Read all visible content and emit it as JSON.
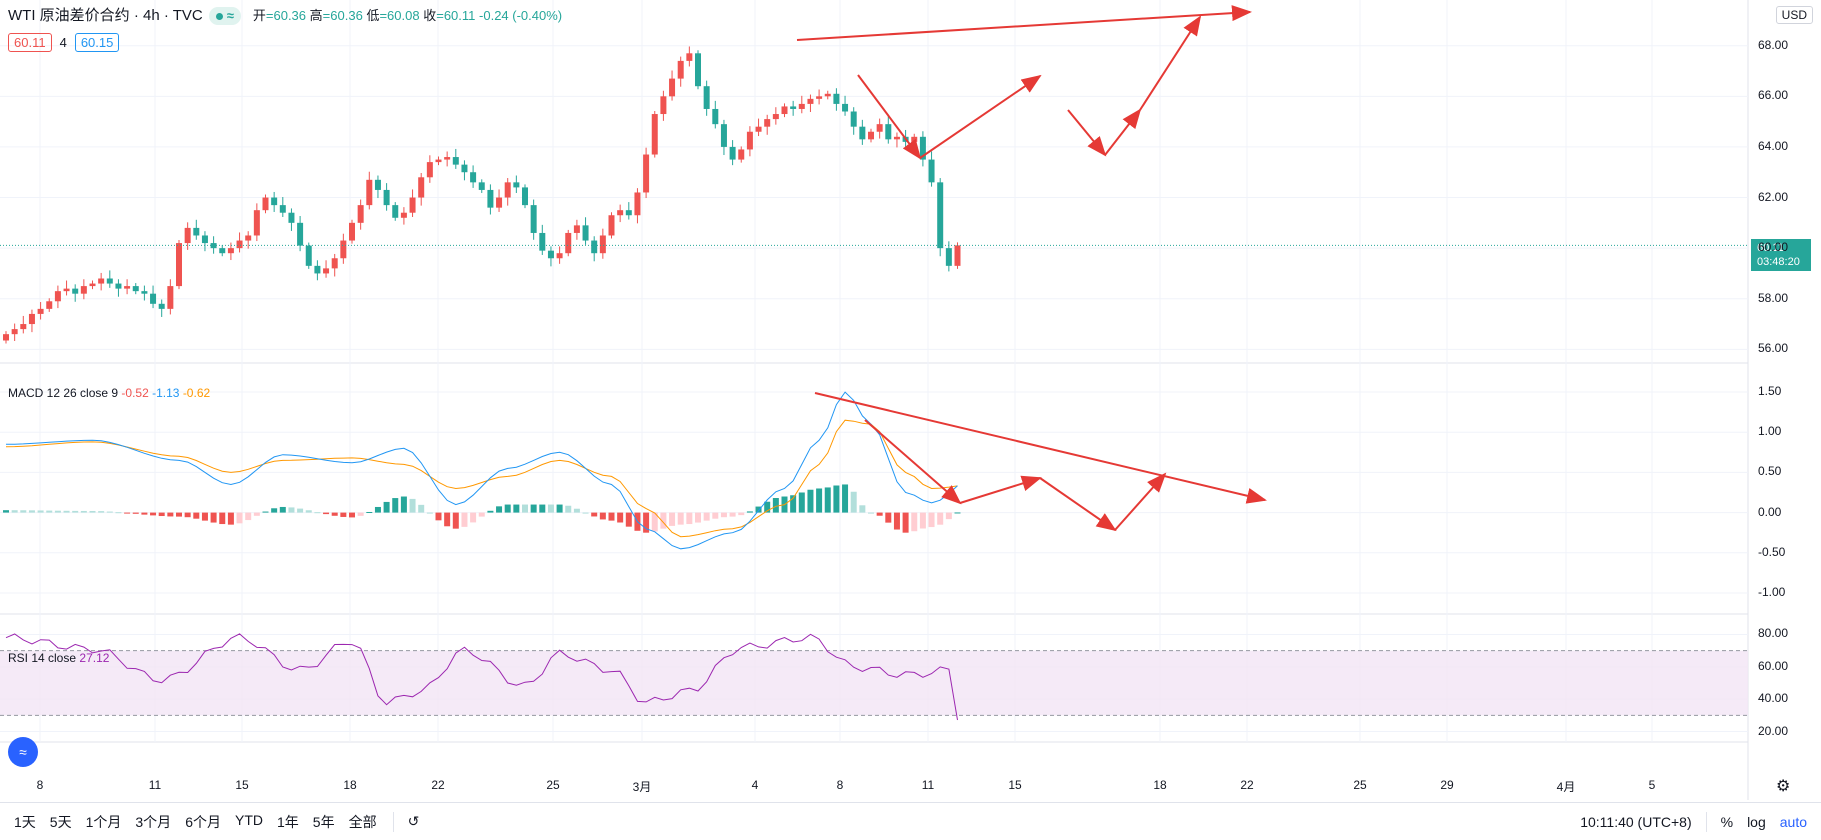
{
  "header": {
    "symbol": "WTI 原油差价合约 · 4h · TVC",
    "badge_symbol": "≈",
    "ohlc": {
      "open_label": "开",
      "open": "60.36",
      "high_label": "高",
      "high": "60.36",
      "low_label": "低",
      "low": "60.08",
      "close_label": "收",
      "close": "60.11",
      "change": "-0.24 (-0.40%)"
    },
    "sell_price": "60.11",
    "spread": "4",
    "buy_price": "60.15",
    "currency": "USD"
  },
  "last_price_tag": {
    "price": "60.11",
    "countdown": "03:48:20"
  },
  "macd_legend": {
    "label": "MACD 12 26 close 9",
    "hist": "-0.52",
    "macd": "-1.13",
    "signal": "-0.62"
  },
  "rsi_legend": {
    "label": "RSI 14 close",
    "value": "27.12"
  },
  "price_axis": [
    "68.00",
    "66.00",
    "64.00",
    "62.00",
    "60.00",
    "58.00",
    "56.00"
  ],
  "macd_axis": [
    "1.50",
    "1.00",
    "0.50",
    "0.00",
    "-0.50",
    "-1.00"
  ],
  "rsi_axis": [
    "80.00",
    "60.00",
    "40.00",
    "20.00"
  ],
  "time_axis": [
    "8",
    "11",
    "15",
    "18",
    "22",
    "25",
    "3月",
    "4",
    "8",
    "11",
    "15",
    "18",
    "22",
    "25",
    "29",
    "4月",
    "5"
  ],
  "toolbar": {
    "timeframes": [
      "1天",
      "5天",
      "1个月",
      "3个月",
      "6个月",
      "YTD",
      "1年",
      "5年",
      "全部"
    ],
    "goto_icon": "calendar-goto-icon",
    "clock": "10:11:40 (UTC+8)",
    "percent": "%",
    "log": "log",
    "auto": "auto"
  },
  "colors": {
    "up": "#ef5350",
    "down": "#26a69a",
    "macd_line": "#2196f3",
    "signal_line": "#ff9800",
    "rsi_line": "#9c27b0",
    "annotation": "#e53935"
  },
  "chart_data": [
    {
      "type": "candlestick",
      "title": "WTI 原油差价合约 · 4h · TVC",
      "ylim": [
        55.5,
        68.7
      ],
      "close_series": [
        56.6,
        56.8,
        57.0,
        57.4,
        57.6,
        57.9,
        58.3,
        58.4,
        58.2,
        58.5,
        58.6,
        58.8,
        58.6,
        58.4,
        58.5,
        58.3,
        58.2,
        57.8,
        57.6,
        58.5,
        60.2,
        60.8,
        60.5,
        60.2,
        60.0,
        59.8,
        60.0,
        60.3,
        60.5,
        61.5,
        62.0,
        61.7,
        61.4,
        61.0,
        60.1,
        59.3,
        59.0,
        59.2,
        59.6,
        60.3,
        61.0,
        61.7,
        62.7,
        62.3,
        61.7,
        61.2,
        61.4,
        62.0,
        62.8,
        63.4,
        63.5,
        63.6,
        63.3,
        63.0,
        62.6,
        62.3,
        61.6,
        62.0,
        62.6,
        62.4,
        61.7,
        60.6,
        59.9,
        59.6,
        59.8,
        60.6,
        60.9,
        60.3,
        59.8,
        60.5,
        61.3,
        61.5,
        61.3,
        62.2,
        63.7,
        65.3,
        66.0,
        66.7,
        67.4,
        67.7,
        66.4,
        65.5,
        64.9,
        64.0,
        63.5,
        63.9,
        64.6,
        64.8,
        65.1,
        65.3,
        65.6,
        65.5,
        65.7,
        65.9,
        66.0,
        66.1,
        65.7,
        65.4,
        64.8,
        64.3,
        64.6,
        64.9,
        64.3,
        64.4,
        64.2,
        64.4,
        63.5,
        62.6,
        60.0,
        59.3,
        60.11
      ]
    },
    {
      "type": "line",
      "title": "MACD 12 26 close 9",
      "ylim": [
        -1.15,
        1.65
      ],
      "series": [
        {
          "name": "MACD",
          "anchors": [
            [
              0,
              0.85
            ],
            [
              10,
              0.9
            ],
            [
              20,
              0.65
            ],
            [
              26,
              0.35
            ],
            [
              32,
              0.72
            ],
            [
              40,
              0.62
            ],
            [
              46,
              0.8
            ],
            [
              52,
              0.1
            ],
            [
              58,
              0.55
            ],
            [
              64,
              0.75
            ],
            [
              70,
              0.35
            ],
            [
              74,
              -0.2
            ],
            [
              78,
              -0.45
            ],
            [
              84,
              -0.25
            ],
            [
              90,
              0.3
            ],
            [
              94,
              0.9
            ],
            [
              97,
              1.5
            ],
            [
              100,
              1.1
            ],
            [
              104,
              0.25
            ],
            [
              107,
              0.12
            ],
            [
              112,
              0.45
            ],
            [
              118,
              0.3
            ],
            [
              124,
              -0.05
            ],
            [
              130,
              -0.2
            ],
            [
              133,
              -0.5
            ],
            [
              137,
              -1.1
            ]
          ]
        },
        {
          "name": "Signal",
          "anchors": [
            [
              0,
              0.82
            ],
            [
              10,
              0.88
            ],
            [
              20,
              0.7
            ],
            [
              26,
              0.5
            ],
            [
              32,
              0.65
            ],
            [
              40,
              0.68
            ],
            [
              46,
              0.6
            ],
            [
              52,
              0.3
            ],
            [
              58,
              0.45
            ],
            [
              64,
              0.65
            ],
            [
              70,
              0.45
            ],
            [
              74,
              0.05
            ],
            [
              78,
              -0.3
            ],
            [
              84,
              -0.2
            ],
            [
              90,
              0.1
            ],
            [
              94,
              0.6
            ],
            [
              97,
              1.15
            ],
            [
              100,
              1.1
            ],
            [
              104,
              0.5
            ],
            [
              107,
              0.3
            ],
            [
              112,
              0.35
            ],
            [
              118,
              0.4
            ],
            [
              124,
              0.05
            ],
            [
              130,
              -0.1
            ],
            [
              133,
              -0.3
            ],
            [
              137,
              -0.62
            ]
          ]
        },
        {
          "name": "Histogram",
          "derived": "MACD - Signal"
        }
      ]
    },
    {
      "type": "line",
      "title": "RSI 14 close",
      "ylim": [
        16,
        84
      ],
      "bands": [
        30,
        70
      ],
      "series": [
        {
          "name": "RSI",
          "anchors": [
            [
              0,
              78
            ],
            [
              10,
              71
            ],
            [
              18,
              52
            ],
            [
              27,
              78
            ],
            [
              34,
              58
            ],
            [
              40,
              76
            ],
            [
              44,
              38
            ],
            [
              48,
              45
            ],
            [
              53,
              70
            ],
            [
              60,
              48
            ],
            [
              64,
              68
            ],
            [
              70,
              58
            ],
            [
              74,
              38
            ],
            [
              79,
              45
            ],
            [
              85,
              72
            ],
            [
              93,
              78
            ],
            [
              98,
              60
            ],
            [
              104,
              55
            ],
            [
              112,
              60
            ],
            [
              118,
              48
            ],
            [
              125,
              46
            ],
            [
              131,
              40
            ],
            [
              134,
              20
            ],
            [
              137,
              27.12
            ]
          ]
        }
      ]
    }
  ]
}
